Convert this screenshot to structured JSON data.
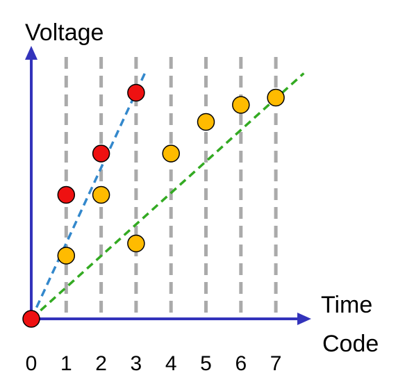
{
  "chart_data": {
    "type": "scatter",
    "ylabel": "Voltage",
    "xlabel_lines": [
      "Time",
      "Code"
    ],
    "x_ticks": [
      "0",
      "1",
      "2",
      "3",
      "4",
      "5",
      "6",
      "7"
    ],
    "xlim": [
      0,
      7
    ],
    "ylim": [
      0,
      5
    ],
    "gridlines": {
      "x": [
        1,
        2,
        3,
        4,
        5,
        6,
        7
      ],
      "style": "dashed",
      "color": "#aaaaaa"
    },
    "axis_color": "#3333bb",
    "series": [
      {
        "color": "#ee1111",
        "points": [
          [
            0,
            0
          ],
          [
            1,
            2.55
          ],
          [
            2,
            3.4
          ],
          [
            3,
            4.65
          ]
        ]
      },
      {
        "color": "#ffbb00",
        "points": [
          [
            1,
            1.3
          ],
          [
            2,
            2.55
          ],
          [
            3,
            1.55
          ],
          [
            4,
            3.4
          ],
          [
            5,
            4.05
          ],
          [
            6,
            4.4
          ],
          [
            7,
            4.55
          ]
        ]
      }
    ],
    "trend_lines": [
      {
        "color": "#3388cc",
        "from": [
          0,
          0
        ],
        "to": [
          3.25,
          5.05
        ]
      },
      {
        "color": "#33aa22",
        "from": [
          0,
          0
        ],
        "to": [
          7.8,
          5.05
        ]
      }
    ]
  }
}
